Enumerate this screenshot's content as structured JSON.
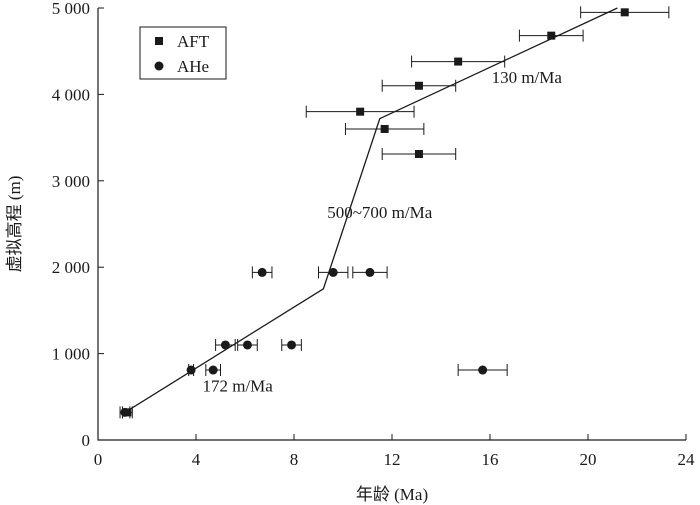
{
  "chart_data": {
    "type": "scatter",
    "xlabel": "年龄 (Ma)",
    "ylabel": "虚拟高程 (m)",
    "xlim": [
      0,
      24
    ],
    "ylim": [
      0,
      5000
    ],
    "x_ticks": [
      0,
      4,
      8,
      12,
      16,
      20,
      24
    ],
    "x_tick_labels": [
      "0",
      "4",
      "8",
      "12",
      "16",
      "20",
      "24"
    ],
    "y_ticks": [
      0,
      1000,
      2000,
      3000,
      4000,
      5000
    ],
    "y_tick_labels": [
      "0",
      "1 000",
      "2 000",
      "3 000",
      "4 000",
      "5 000"
    ],
    "legend_position": "top-left",
    "series": [
      {
        "name": "AFT",
        "marker": "square",
        "points": [
          {
            "x": 21.5,
            "y": 4950,
            "xerr": 1.8
          },
          {
            "x": 18.5,
            "y": 4680,
            "xerr": 1.3
          },
          {
            "x": 14.7,
            "y": 4380,
            "xerr": 1.9
          },
          {
            "x": 13.1,
            "y": 4100,
            "xerr": 1.5
          },
          {
            "x": 10.7,
            "y": 3800,
            "xerr": 2.2
          },
          {
            "x": 11.7,
            "y": 3600,
            "xerr": 1.6
          },
          {
            "x": 13.1,
            "y": 3310,
            "xerr": 1.5
          },
          {
            "x": 1.2,
            "y": 320,
            "xerr": 0.2
          }
        ]
      },
      {
        "name": "AHe",
        "marker": "circle",
        "points": [
          {
            "x": 6.7,
            "y": 1940,
            "xerr": 0.4
          },
          {
            "x": 9.6,
            "y": 1940,
            "xerr": 0.6
          },
          {
            "x": 11.1,
            "y": 1940,
            "xerr": 0.7
          },
          {
            "x": 5.2,
            "y": 1100,
            "xerr": 0.4
          },
          {
            "x": 6.1,
            "y": 1100,
            "xerr": 0.4
          },
          {
            "x": 7.9,
            "y": 1100,
            "xerr": 0.4
          },
          {
            "x": 3.8,
            "y": 810,
            "xerr": 0.1
          },
          {
            "x": 4.7,
            "y": 810,
            "xerr": 0.3
          },
          {
            "x": 15.7,
            "y": 810,
            "xerr": 1.0
          },
          {
            "x": 1.1,
            "y": 320,
            "xerr": 0.2
          }
        ]
      }
    ],
    "fit_line": [
      {
        "x": 1.1,
        "y": 320
      },
      {
        "x": 9.2,
        "y": 1750
      },
      {
        "x": 11.5,
        "y": 3720
      },
      {
        "x": 21.2,
        "y": 5000
      }
    ],
    "annotations": [
      {
        "text": "130 m/Ma",
        "x": 17.5,
        "y": 4130
      },
      {
        "text": "500~700 m/Ma",
        "x": 11.5,
        "y": 2570
      },
      {
        "text": "172 m/Ma",
        "x": 5.7,
        "y": 560
      }
    ]
  }
}
